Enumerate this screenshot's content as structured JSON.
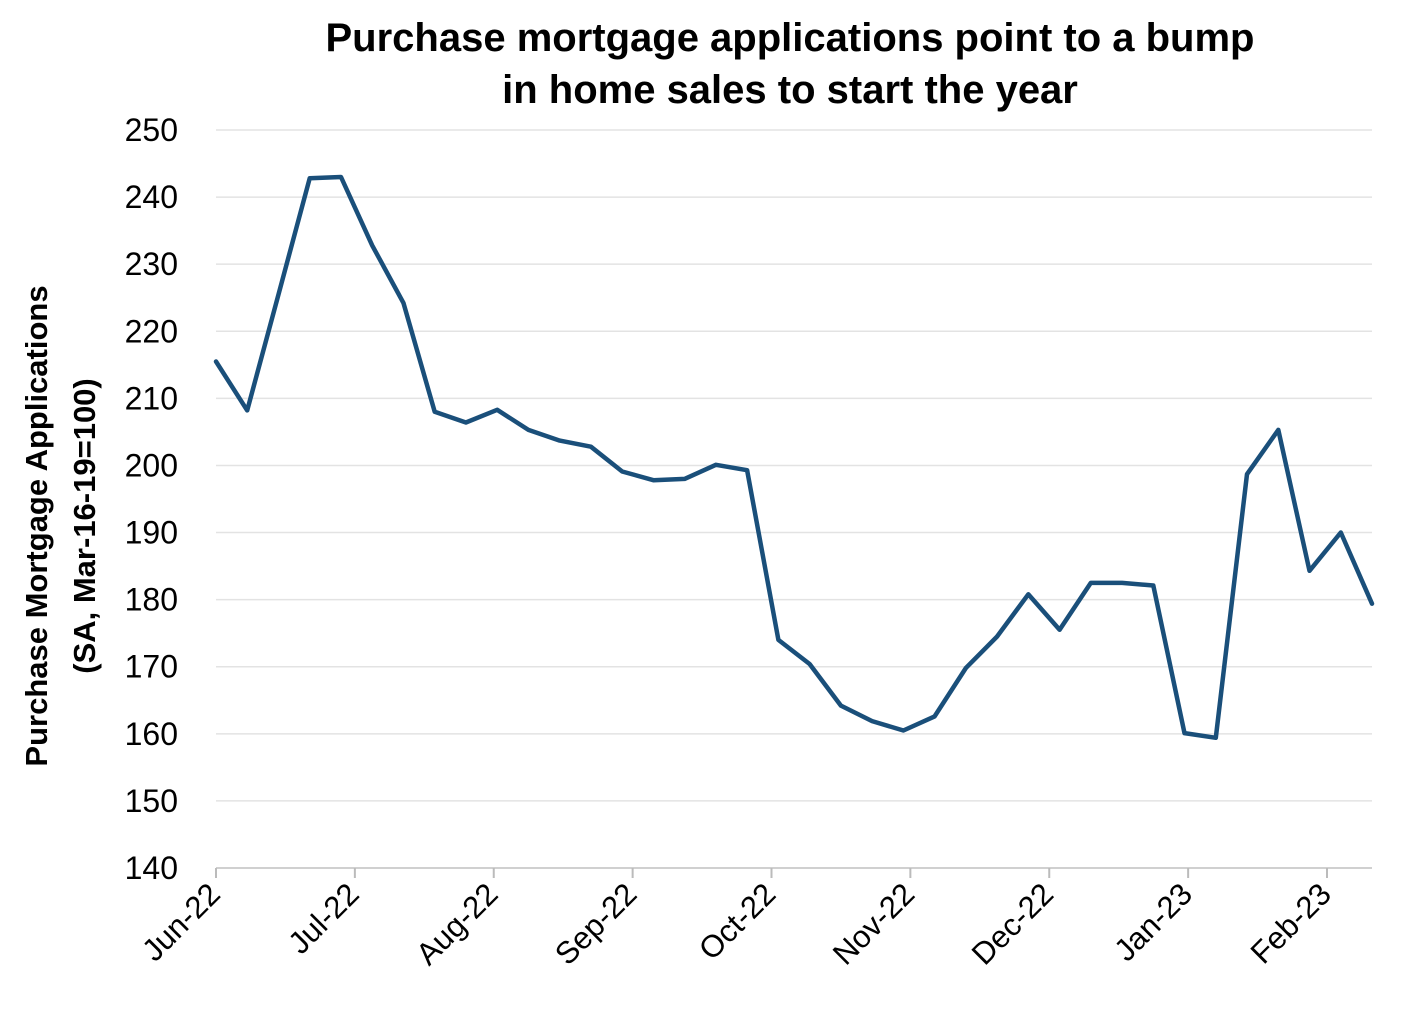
{
  "chart_data": {
    "type": "line",
    "title": "Purchase mortgage applications point to a bump in home sales to start the year",
    "title_lines": [
      "Purchase mortgage applications point to a bump",
      "in home sales to start the year"
    ],
    "ylabel": "Purchase Mortgage Applications (SA, Mar-16-19=100)",
    "ylabel_lines": [
      "Purchase Mortgage Applications",
      "(SA, Mar-16-19=100)"
    ],
    "xlabel": "",
    "ylim": [
      140,
      250
    ],
    "yticks": [
      140,
      150,
      160,
      170,
      180,
      190,
      200,
      210,
      220,
      230,
      240,
      250
    ],
    "xticks": [
      "Jun-22",
      "Jul-22",
      "Aug-22",
      "Sep-22",
      "Oct-22",
      "Nov-22",
      "Dec-22",
      "Jan-23",
      "Feb-23"
    ],
    "grid": true,
    "line_color": "#1a4f7a",
    "series": [
      {
        "values": [
          215.5,
          208.2,
          225.5,
          242.8,
          243.0,
          232.8,
          224.2,
          208.0,
          206.4,
          208.3,
          205.3,
          203.7,
          202.8,
          199.1,
          197.8,
          198.0,
          200.1,
          199.3,
          174.0,
          170.4,
          164.2,
          161.9,
          160.5,
          162.6,
          169.8,
          174.5,
          180.8,
          175.5,
          182.5,
          182.5,
          182.1,
          160.1,
          159.4,
          198.7,
          205.3,
          184.3,
          190.0,
          179.4
        ]
      }
    ]
  }
}
